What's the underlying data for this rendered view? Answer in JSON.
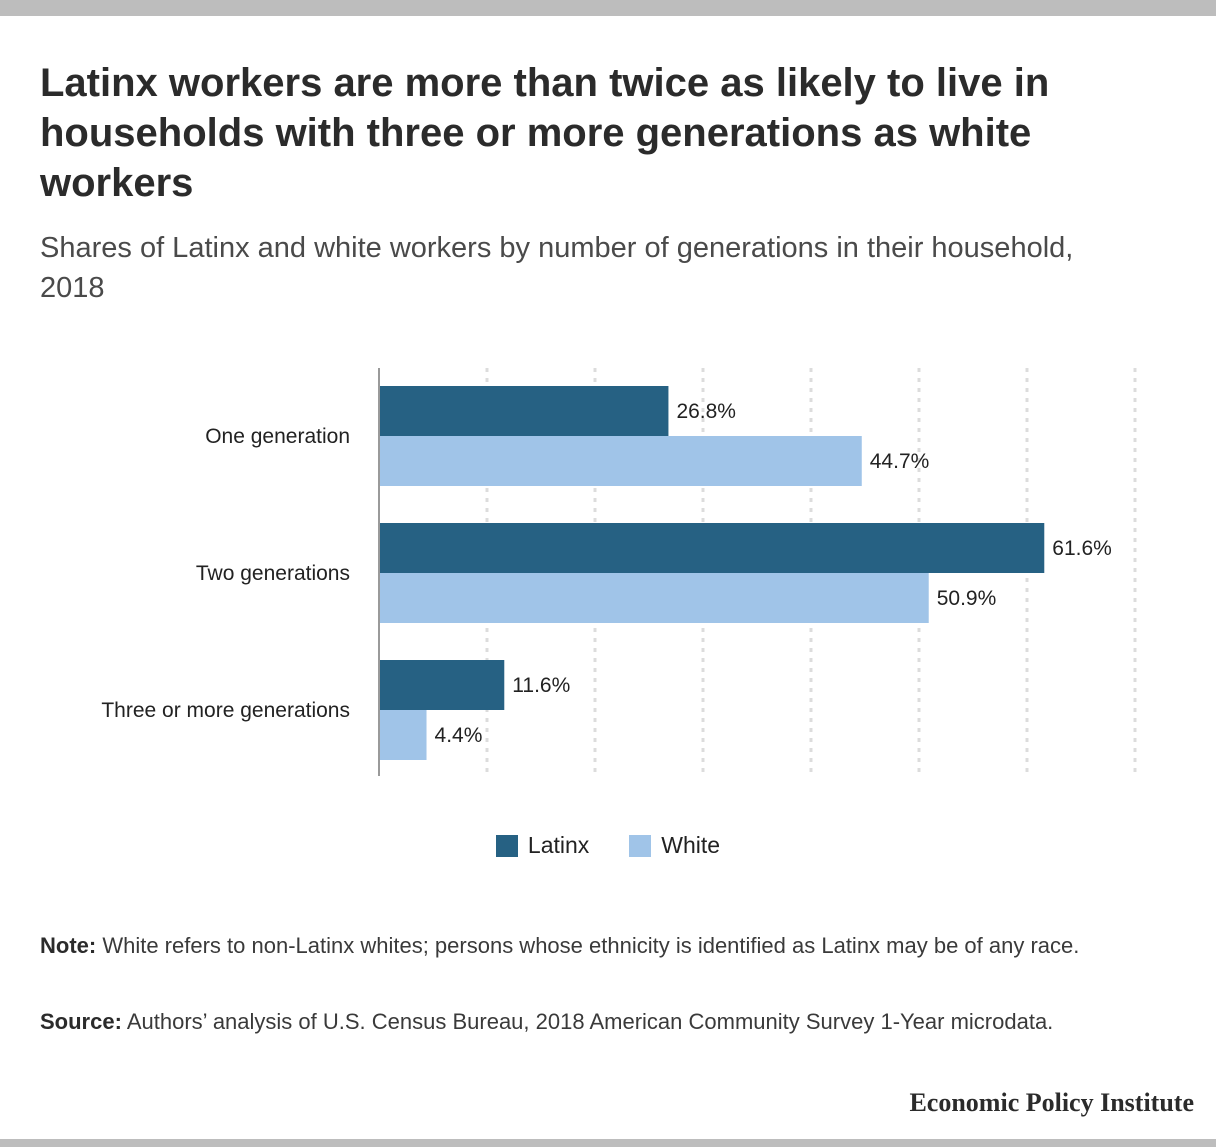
{
  "header": {
    "title": "Latinx workers are more than twice as likely to live in households with three or more generations as white workers",
    "subtitle": "Shares of Latinx and white workers by number of generations in their household, 2018"
  },
  "chart_data": {
    "type": "bar",
    "orientation": "horizontal",
    "categories": [
      "One generation",
      "Two generations",
      "Three or more generations"
    ],
    "series": [
      {
        "name": "Latinx",
        "values": [
          26.8,
          61.6,
          11.6
        ],
        "color": "#266183"
      },
      {
        "name": "White",
        "values": [
          44.7,
          50.9,
          4.4
        ],
        "color": "#a0c4e8"
      }
    ],
    "value_labels": [
      [
        "26.8%",
        "61.6%",
        "11.6%"
      ],
      [
        "44.7%",
        "50.9%",
        "4.4%"
      ]
    ],
    "xlim": [
      0,
      70
    ],
    "grid": true,
    "legend_position": "bottom"
  },
  "footer": {
    "note_label": "Note:",
    "note_text": " White refers to non-Latinx whites; persons whose ethnicity is identified as Latinx may be of any race.",
    "source_label": "Source:",
    "source_text": " Authors’ analysis of U.S. Census Bureau, 2018 American Community Survey 1-Year microdata.",
    "brand": "Economic Policy Institute"
  }
}
